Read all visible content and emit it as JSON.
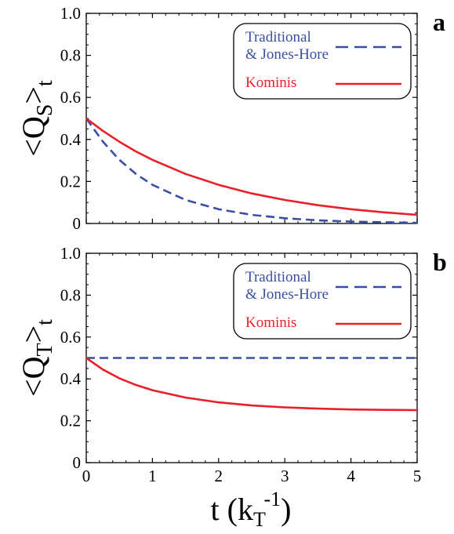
{
  "chart_data": [
    {
      "type": "line",
      "panel_label": "a",
      "ylabel": {
        "base": "<Q",
        "sub": "S",
        "tail": ">",
        "sub2": "t"
      },
      "xlim": [
        0,
        5
      ],
      "ylim": [
        0,
        1.0
      ],
      "yticks": [
        0,
        0.2,
        0.4,
        0.6,
        0.8,
        1.0
      ],
      "ytick_labels": [
        "0",
        "0.2",
        "0.4",
        "0.6",
        "0.8",
        "1.0"
      ],
      "xticks": [
        0,
        1,
        2,
        3,
        4,
        5
      ],
      "legend": {
        "placement": "top-right",
        "entries": [
          {
            "lines": [
              "Traditional",
              "& Jones-Hore"
            ],
            "color": "#3a4fa0",
            "dash": true
          },
          {
            "lines": [
              "Kominis"
            ],
            "color": "#e8202a",
            "dash": false
          }
        ]
      },
      "series": [
        {
          "color": "#3a4fa0",
          "style": "dashed",
          "x": [
            0,
            0.25,
            0.5,
            0.75,
            1,
            1.5,
            2,
            2.5,
            3,
            3.5,
            4,
            4.5,
            5
          ],
          "y": [
            0.5,
            0.39,
            0.303,
            0.236,
            0.184,
            0.112,
            0.068,
            0.041,
            0.025,
            0.015,
            0.009,
            0.006,
            0.003
          ]
        },
        {
          "color": "#e8202a",
          "style": "solid",
          "x": [
            0,
            0.25,
            0.5,
            0.75,
            1,
            1.5,
            2,
            2.5,
            3,
            3.5,
            4,
            4.5,
            5
          ],
          "y": [
            0.5,
            0.441,
            0.389,
            0.343,
            0.303,
            0.236,
            0.184,
            0.143,
            0.112,
            0.087,
            0.068,
            0.053,
            0.041
          ]
        }
      ]
    },
    {
      "type": "line",
      "panel_label": "b",
      "ylabel": {
        "base": "<Q",
        "sub": "T",
        "tail": ">",
        "sub2": "t"
      },
      "xlabel": {
        "base": "t (k",
        "sub": "T",
        "sup": "-1",
        "tail": ")"
      },
      "xlim": [
        0,
        5
      ],
      "ylim": [
        0,
        1.0
      ],
      "yticks": [
        0,
        0.2,
        0.4,
        0.6,
        0.8,
        1.0
      ],
      "ytick_labels": [
        "0",
        "0.2",
        "0.4",
        "0.6",
        "0.8",
        "1.0"
      ],
      "xticks": [
        0,
        1,
        2,
        3,
        4,
        5
      ],
      "xtick_labels": [
        "0",
        "1",
        "2",
        "3",
        "4",
        "5"
      ],
      "legend": {
        "placement": "top-right",
        "entries": [
          {
            "lines": [
              "Traditional",
              "& Jones-Hore"
            ],
            "color": "#3a4fa0",
            "dash": true
          },
          {
            "lines": [
              "Kominis"
            ],
            "color": "#e8202a",
            "dash": false
          }
        ]
      },
      "series": [
        {
          "color": "#3a4fa0",
          "style": "dashed",
          "x": [
            0,
            5
          ],
          "y": [
            0.5,
            0.5
          ]
        },
        {
          "color": "#e8202a",
          "style": "solid",
          "x": [
            0,
            0.25,
            0.5,
            0.75,
            1,
            1.5,
            2,
            2.5,
            3,
            3.5,
            4,
            4.5,
            5
          ],
          "y": [
            0.5,
            0.445,
            0.403,
            0.371,
            0.346,
            0.311,
            0.288,
            0.273,
            0.264,
            0.258,
            0.254,
            0.252,
            0.251
          ]
        }
      ]
    }
  ]
}
